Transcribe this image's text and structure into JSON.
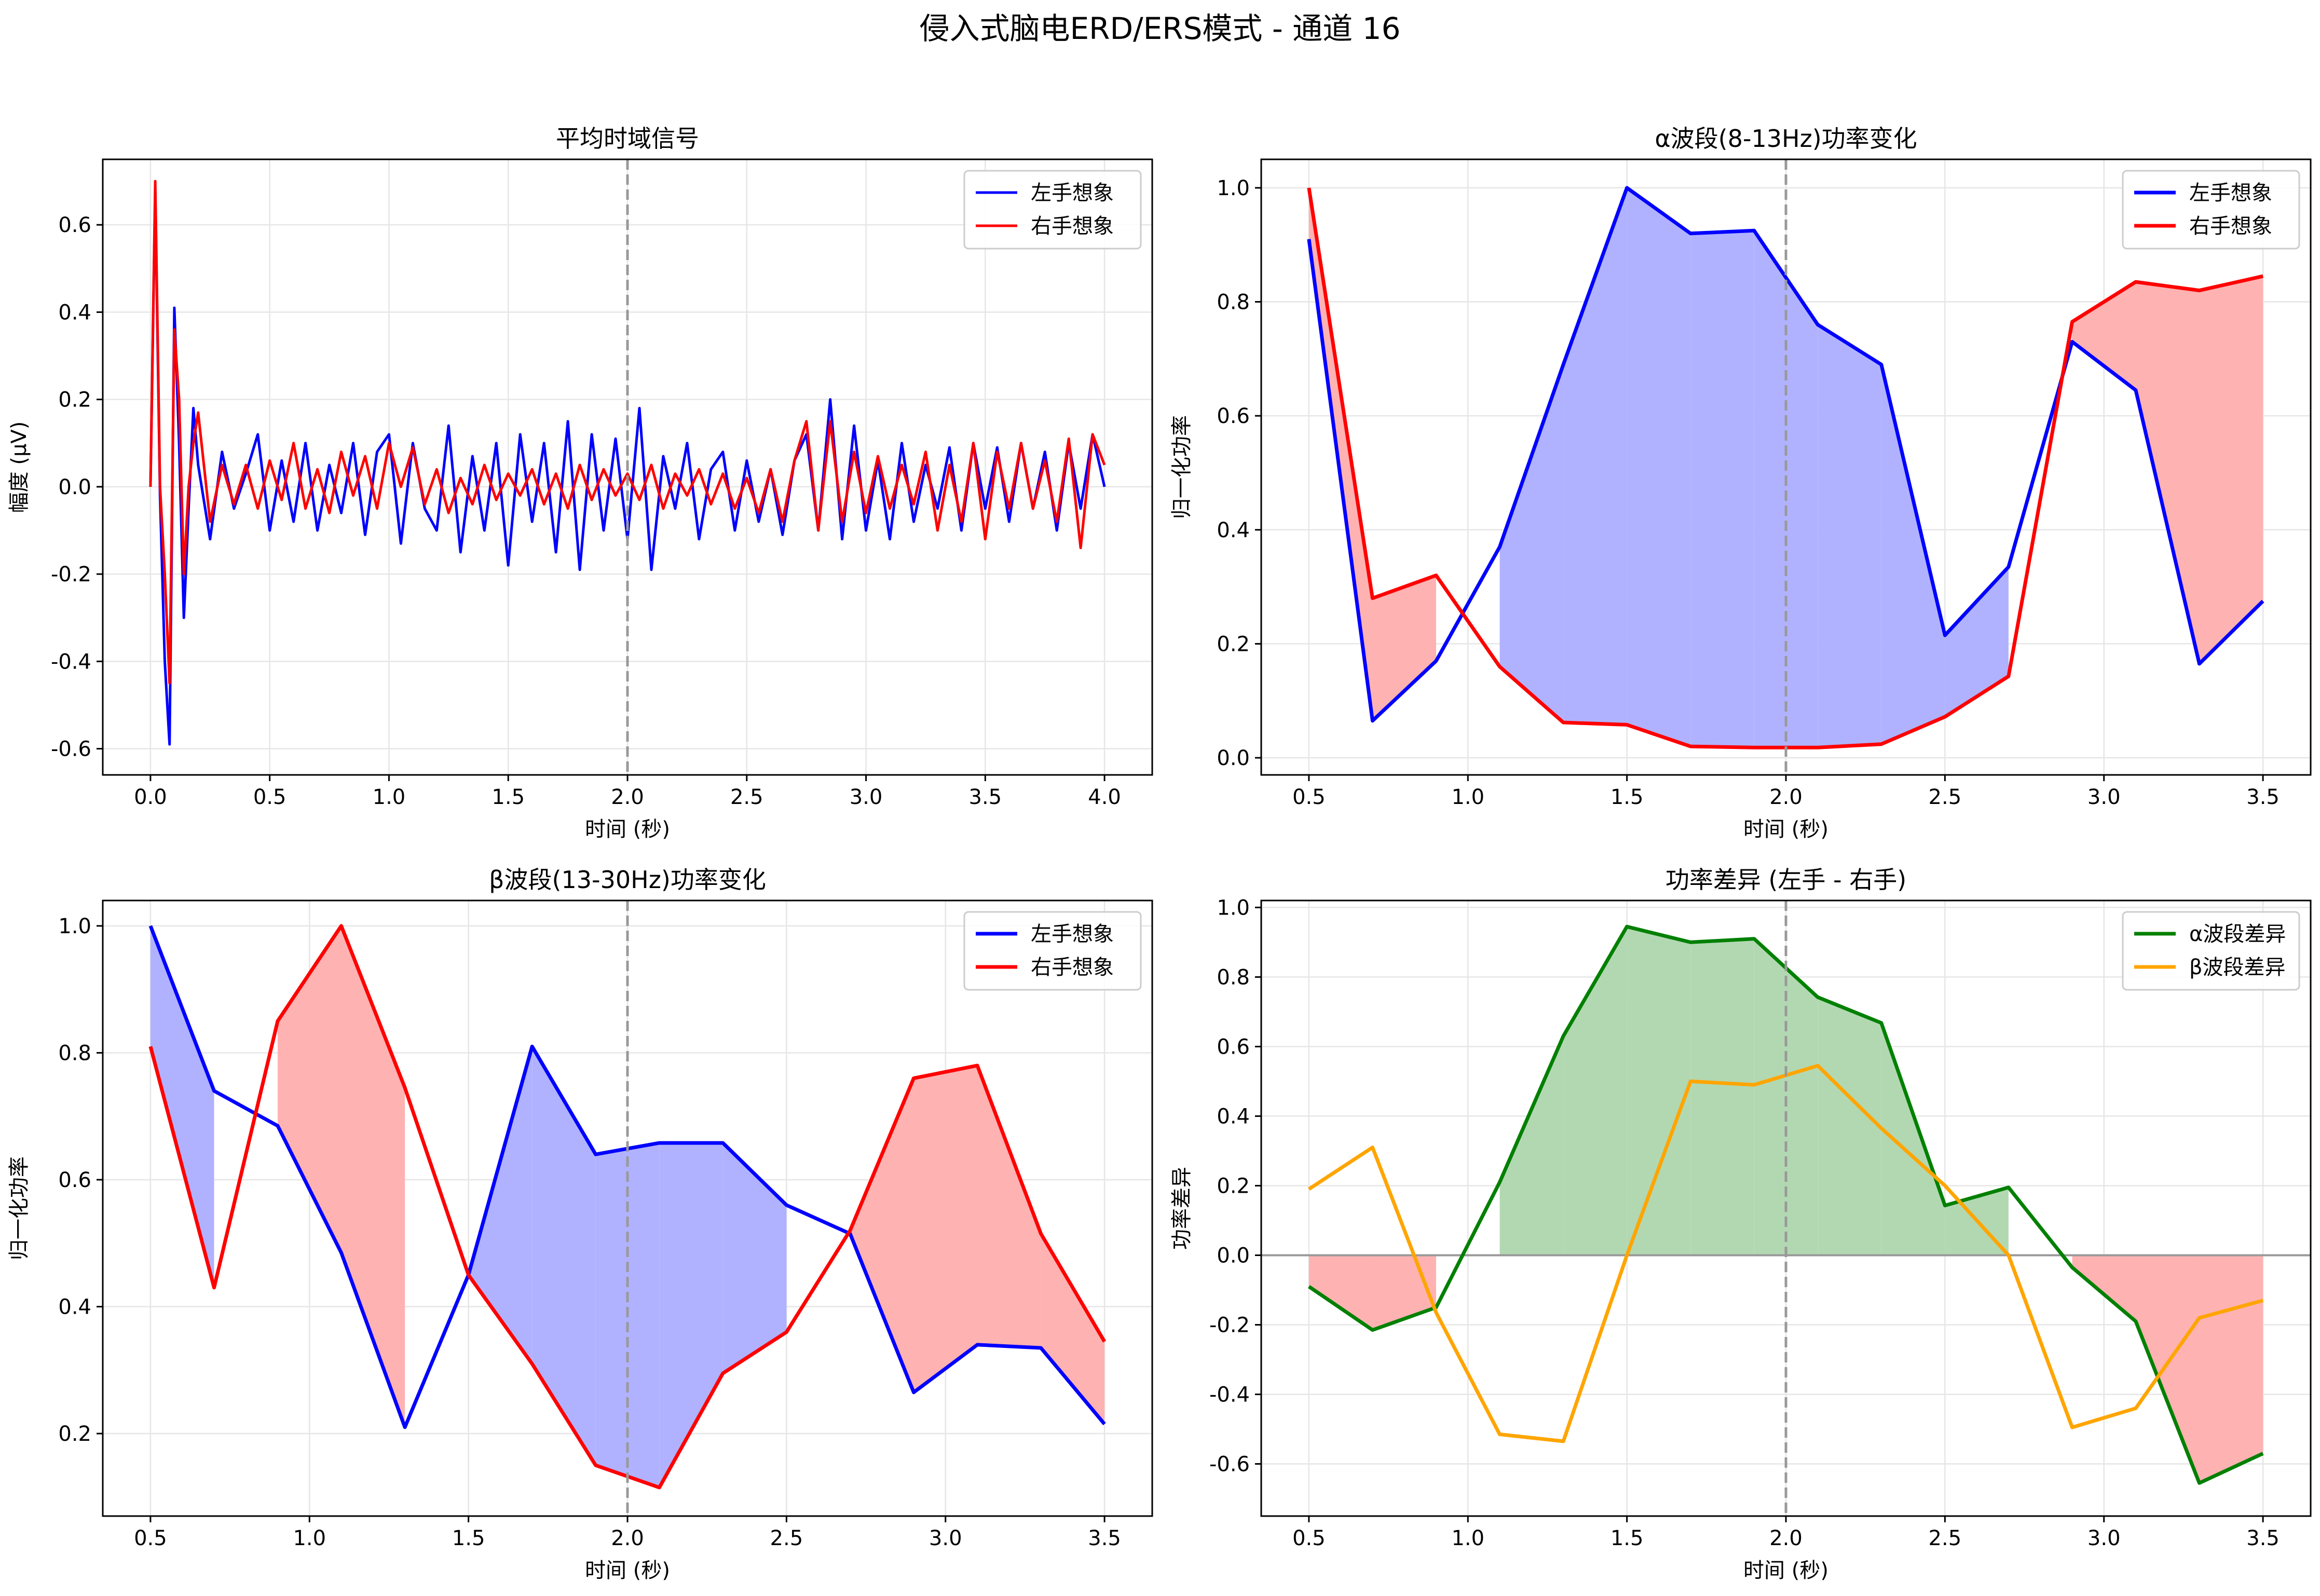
{
  "suptitle": "侵入式脑电ERD/ERS模式 - 通道 16",
  "colors": {
    "left": "#0000ff",
    "right": "#ff0000",
    "left_fill": "#b0b2ff",
    "right_fill": "#ffb2b2",
    "alpha_diff": "#008000",
    "beta_diff": "#ffa500",
    "alpha_diff_fill": "#b2d8b2",
    "grid": "#e6e6e6",
    "marker": "#999999",
    "zero_line": "#999999"
  },
  "chart_data": [
    {
      "type": "line",
      "title": "平均时域信号",
      "xlabel": "时间 (秒)",
      "ylabel": "幅度 (μV)",
      "xlim": [
        -0.2,
        4.2
      ],
      "ylim": [
        -0.66,
        0.75
      ],
      "xticks": [
        0.0,
        0.5,
        1.0,
        1.5,
        2.0,
        2.5,
        3.0,
        3.5,
        4.0
      ],
      "xtick_labels": [
        "0.0",
        "0.5",
        "1.0",
        "1.5",
        "2.0",
        "2.5",
        "3.0",
        "3.5",
        "4.0"
      ],
      "yticks": [
        -0.6,
        -0.4,
        -0.2,
        0.0,
        0.2,
        0.4,
        0.6
      ],
      "ytick_labels": [
        "-0.6",
        "-0.4",
        "-0.2",
        "0.0",
        "0.2",
        "0.4",
        "0.6"
      ],
      "grid": true,
      "vline": 2.0,
      "legend": "upper right",
      "series": [
        {
          "name": "左手想象",
          "x": [
            0.0,
            0.02,
            0.04,
            0.06,
            0.08,
            0.1,
            0.12,
            0.14,
            0.16,
            0.18,
            0.2,
            0.25,
            0.3,
            0.35,
            0.4,
            0.45,
            0.5,
            0.55,
            0.6,
            0.65,
            0.7,
            0.75,
            0.8,
            0.85,
            0.9,
            0.95,
            1.0,
            1.05,
            1.1,
            1.15,
            1.2,
            1.25,
            1.3,
            1.35,
            1.4,
            1.45,
            1.5,
            1.55,
            1.6,
            1.65,
            1.7,
            1.75,
            1.8,
            1.85,
            1.9,
            1.95,
            2.0,
            2.05,
            2.1,
            2.15,
            2.2,
            2.25,
            2.3,
            2.35,
            2.4,
            2.45,
            2.5,
            2.55,
            2.6,
            2.65,
            2.7,
            2.75,
            2.8,
            2.85,
            2.9,
            2.95,
            3.0,
            3.05,
            3.1,
            3.15,
            3.2,
            3.25,
            3.3,
            3.35,
            3.4,
            3.45,
            3.5,
            3.55,
            3.6,
            3.65,
            3.7,
            3.75,
            3.8,
            3.85,
            3.9,
            3.95,
            4.0
          ],
          "y": [
            0.0,
            0.68,
            -0.02,
            -0.4,
            -0.59,
            0.41,
            0.1,
            -0.3,
            -0.05,
            0.18,
            0.05,
            -0.12,
            0.08,
            -0.05,
            0.03,
            0.12,
            -0.1,
            0.06,
            -0.08,
            0.1,
            -0.1,
            0.05,
            -0.06,
            0.1,
            -0.11,
            0.08,
            0.12,
            -0.13,
            0.1,
            -0.05,
            -0.1,
            0.14,
            -0.15,
            0.07,
            -0.1,
            0.1,
            -0.18,
            0.12,
            -0.08,
            0.1,
            -0.15,
            0.15,
            -0.19,
            0.12,
            -0.1,
            0.11,
            -0.12,
            0.18,
            -0.19,
            0.07,
            -0.05,
            0.1,
            -0.12,
            0.04,
            0.08,
            -0.1,
            0.06,
            -0.08,
            0.04,
            -0.11,
            0.06,
            0.12,
            -0.1,
            0.2,
            -0.12,
            0.14,
            -0.1,
            0.06,
            -0.12,
            0.1,
            -0.08,
            0.05,
            -0.05,
            0.09,
            -0.1,
            0.1,
            -0.05,
            0.09,
            -0.08,
            0.1,
            -0.05,
            0.08,
            -0.1,
            0.1,
            -0.05,
            0.12,
            0.0
          ]
        },
        {
          "name": "右手想象",
          "x": [
            0.0,
            0.02,
            0.04,
            0.06,
            0.08,
            0.1,
            0.12,
            0.14,
            0.16,
            0.18,
            0.2,
            0.25,
            0.3,
            0.35,
            0.4,
            0.45,
            0.5,
            0.55,
            0.6,
            0.65,
            0.7,
            0.75,
            0.8,
            0.85,
            0.9,
            0.95,
            1.0,
            1.05,
            1.1,
            1.15,
            1.2,
            1.25,
            1.3,
            1.35,
            1.4,
            1.45,
            1.5,
            1.55,
            1.6,
            1.65,
            1.7,
            1.75,
            1.8,
            1.85,
            1.9,
            1.95,
            2.0,
            2.05,
            2.1,
            2.15,
            2.2,
            2.25,
            2.3,
            2.35,
            2.4,
            2.45,
            2.5,
            2.55,
            2.6,
            2.65,
            2.7,
            2.75,
            2.8,
            2.85,
            2.9,
            2.95,
            3.0,
            3.05,
            3.1,
            3.15,
            3.2,
            3.25,
            3.3,
            3.35,
            3.4,
            3.45,
            3.5,
            3.55,
            3.6,
            3.65,
            3.7,
            3.75,
            3.8,
            3.85,
            3.9,
            3.95,
            4.0
          ],
          "y": [
            0.0,
            0.7,
            0.0,
            -0.2,
            -0.45,
            0.36,
            0.2,
            -0.2,
            0.0,
            0.1,
            0.17,
            -0.08,
            0.05,
            -0.04,
            0.05,
            -0.05,
            0.06,
            -0.03,
            0.1,
            -0.05,
            0.04,
            -0.06,
            0.08,
            -0.02,
            0.07,
            -0.05,
            0.1,
            0.0,
            0.09,
            -0.04,
            0.04,
            -0.06,
            0.02,
            -0.04,
            0.05,
            -0.03,
            0.03,
            -0.02,
            0.04,
            -0.04,
            0.03,
            -0.05,
            0.05,
            -0.03,
            0.04,
            -0.02,
            0.03,
            -0.03,
            0.05,
            -0.05,
            0.03,
            -0.02,
            0.04,
            -0.04,
            0.03,
            -0.05,
            0.02,
            -0.06,
            0.04,
            -0.08,
            0.06,
            0.15,
            -0.1,
            0.15,
            -0.08,
            0.08,
            -0.06,
            0.07,
            -0.05,
            0.05,
            -0.04,
            0.08,
            -0.1,
            0.05,
            -0.08,
            0.1,
            -0.12,
            0.08,
            -0.05,
            0.1,
            -0.05,
            0.06,
            -0.08,
            0.11,
            -0.14,
            0.12,
            0.05
          ]
        }
      ]
    },
    {
      "type": "line",
      "title": "α波段(8-13Hz)功率变化",
      "xlabel": "时间 (秒)",
      "ylabel": "归一化功率",
      "xlim": [
        0.35,
        3.65
      ],
      "ylim": [
        -0.03,
        1.05
      ],
      "xticks": [
        0.5,
        1.0,
        1.5,
        2.0,
        2.5,
        3.0,
        3.5
      ],
      "xtick_labels": [
        "0.5",
        "1.0",
        "1.5",
        "2.0",
        "2.5",
        "3.0",
        "3.5"
      ],
      "yticks": [
        0.0,
        0.2,
        0.4,
        0.6,
        0.8,
        1.0
      ],
      "ytick_labels": [
        "0.0",
        "0.2",
        "0.4",
        "0.6",
        "0.8",
        "1.0"
      ],
      "grid": true,
      "vline": 2.0,
      "legend": "upper right",
      "fill_between": true,
      "x": [
        0.5,
        0.7,
        0.9,
        1.1,
        1.3,
        1.5,
        1.7,
        1.9,
        2.1,
        2.3,
        2.5,
        2.7,
        2.9,
        3.1,
        3.3,
        3.5
      ],
      "series": [
        {
          "name": "左手想象",
          "values": [
            0.91,
            0.065,
            0.17,
            0.37,
            0.69,
            1.0,
            0.92,
            0.925,
            0.76,
            0.69,
            0.215,
            0.335,
            0.73,
            0.645,
            0.165,
            0.275
          ]
        },
        {
          "name": "右手想象",
          "values": [
            1.0,
            0.28,
            0.32,
            0.16,
            0.062,
            0.058,
            0.02,
            0.018,
            0.018,
            0.024,
            0.072,
            0.143,
            0.765,
            0.835,
            0.82,
            0.845
          ]
        }
      ]
    },
    {
      "type": "line",
      "title": "β波段(13-30Hz)功率变化",
      "xlabel": "时间 (秒)",
      "ylabel": "归一化功率",
      "xlim": [
        0.35,
        3.65
      ],
      "ylim": [
        0.07,
        1.04
      ],
      "xticks": [
        0.5,
        1.0,
        1.5,
        2.0,
        2.5,
        3.0,
        3.5
      ],
      "xtick_labels": [
        "0.5",
        "1.0",
        "1.5",
        "2.0",
        "2.5",
        "3.0",
        "3.5"
      ],
      "yticks": [
        0.2,
        0.4,
        0.6,
        0.8,
        1.0
      ],
      "ytick_labels": [
        "0.2",
        "0.4",
        "0.6",
        "0.8",
        "1.0"
      ],
      "grid": true,
      "vline": 2.0,
      "legend": "upper right",
      "fill_between": true,
      "x": [
        0.5,
        0.7,
        0.9,
        1.1,
        1.3,
        1.5,
        1.7,
        1.9,
        2.1,
        2.3,
        2.5,
        2.7,
        2.9,
        3.1,
        3.3,
        3.5
      ],
      "series": [
        {
          "name": "左手想象",
          "values": [
            1.0,
            0.74,
            0.685,
            0.485,
            0.21,
            0.45,
            0.81,
            0.64,
            0.658,
            0.658,
            0.56,
            0.515,
            0.265,
            0.34,
            0.335,
            0.215
          ]
        },
        {
          "name": "右手想象",
          "values": [
            0.81,
            0.43,
            0.85,
            1.0,
            0.745,
            0.45,
            0.31,
            0.15,
            0.115,
            0.295,
            0.36,
            0.52,
            0.76,
            0.78,
            0.515,
            0.345
          ]
        }
      ]
    },
    {
      "type": "line",
      "title": "功率差异 (左手 - 右手)",
      "xlabel": "时间 (秒)",
      "ylabel": "功率差异",
      "xlim": [
        0.35,
        3.65
      ],
      "ylim": [
        -0.75,
        1.02
      ],
      "xticks": [
        0.5,
        1.0,
        1.5,
        2.0,
        2.5,
        3.0,
        3.5
      ],
      "xtick_labels": [
        "0.5",
        "1.0",
        "1.5",
        "2.0",
        "2.5",
        "3.0",
        "3.5"
      ],
      "yticks": [
        -0.6,
        -0.4,
        -0.2,
        0.0,
        0.2,
        0.4,
        0.6,
        0.8,
        1.0
      ],
      "ytick_labels": [
        "-0.6",
        "-0.4",
        "-0.2",
        "0.0",
        "0.2",
        "0.4",
        "0.6",
        "0.8",
        "1.0"
      ],
      "grid": true,
      "vline": 2.0,
      "hline": 0.0,
      "legend": "upper right",
      "x": [
        0.5,
        0.7,
        0.9,
        1.1,
        1.3,
        1.5,
        1.7,
        1.9,
        2.1,
        2.3,
        2.5,
        2.7,
        2.9,
        3.1,
        3.3,
        3.5
      ],
      "series": [
        {
          "name": "α波段差异",
          "values": [
            -0.09,
            -0.215,
            -0.15,
            0.21,
            0.63,
            0.945,
            0.9,
            0.91,
            0.742,
            0.668,
            0.143,
            0.195,
            -0.035,
            -0.19,
            -0.655,
            -0.57
          ]
        },
        {
          "name": "β波段差异",
          "values": [
            0.19,
            0.31,
            -0.165,
            -0.515,
            -0.535,
            0.0,
            0.5,
            0.49,
            0.545,
            0.365,
            0.2,
            0.0,
            -0.495,
            -0.44,
            -0.18,
            -0.13
          ]
        }
      ]
    }
  ]
}
